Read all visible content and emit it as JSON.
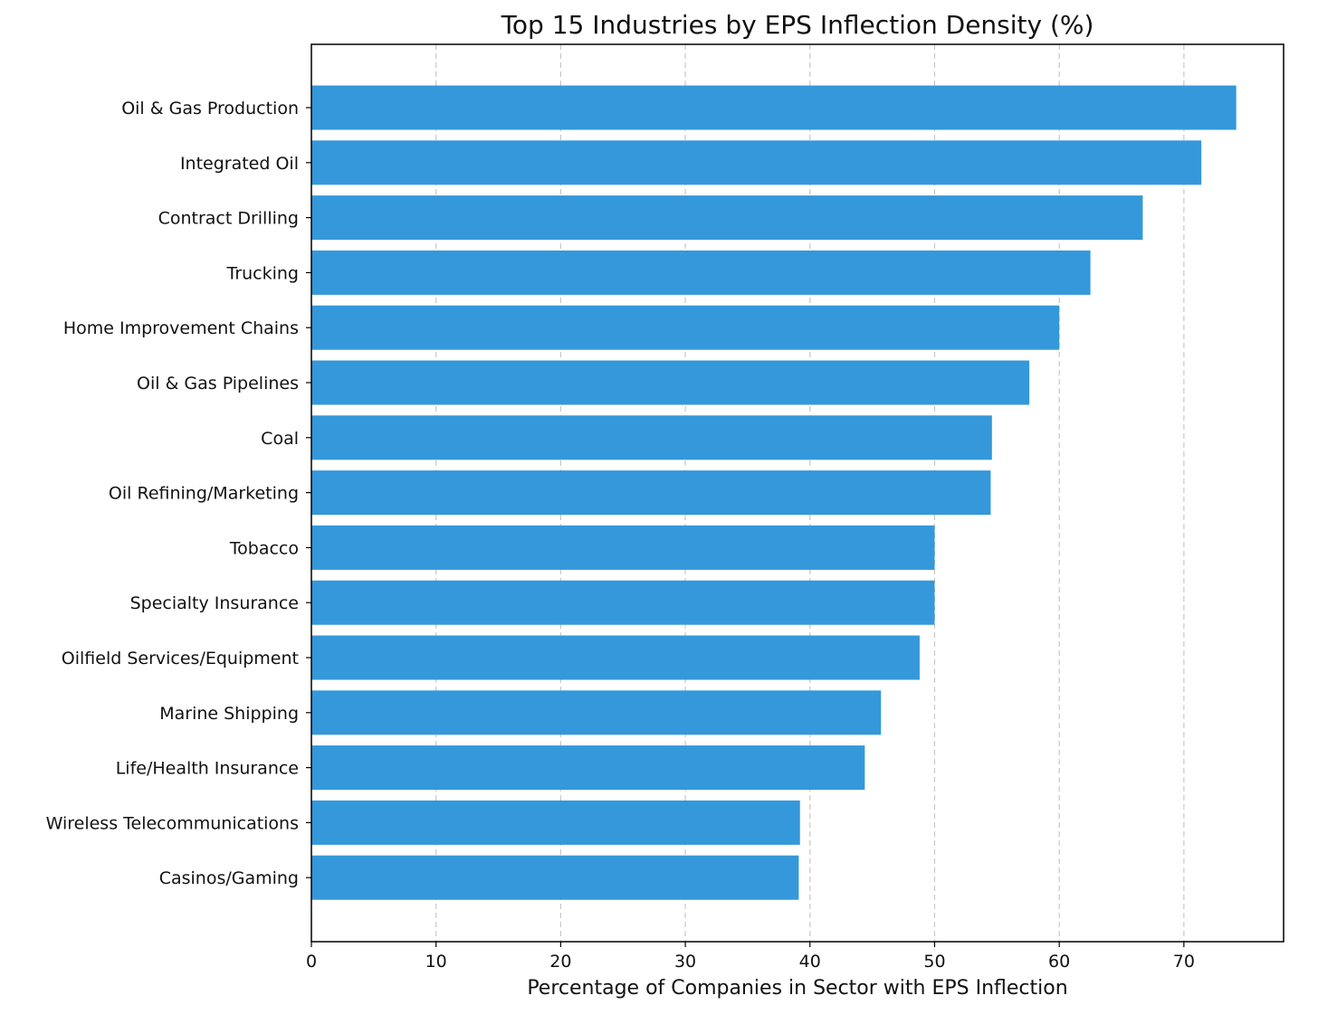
{
  "chart_data": {
    "type": "bar",
    "orientation": "horizontal",
    "title": "Top 15 Industries by EPS Inflection Density (%)",
    "xlabel": "Percentage of Companies in Sector with EPS Inflection",
    "ylabel": "",
    "xlim": [
      0,
      78
    ],
    "xticks": [
      0,
      10,
      20,
      30,
      40,
      50,
      60,
      70
    ],
    "grid": "x-dashed",
    "bar_color": "#3498db",
    "categories": [
      "Oil & Gas Production",
      "Integrated Oil",
      "Contract Drilling",
      "Trucking",
      "Home Improvement Chains",
      "Oil & Gas Pipelines",
      "Coal",
      "Oil Refining/Marketing",
      "Tobacco",
      "Specialty Insurance",
      "Oilfield Services/Equipment",
      "Marine Shipping",
      "Life/Health Insurance",
      "Wireless Telecommunications",
      "Casinos/Gaming"
    ],
    "values": [
      74.2,
      71.4,
      66.7,
      62.5,
      60.0,
      57.6,
      54.6,
      54.5,
      50.0,
      50.0,
      48.8,
      45.7,
      44.4,
      39.2,
      39.1
    ]
  }
}
